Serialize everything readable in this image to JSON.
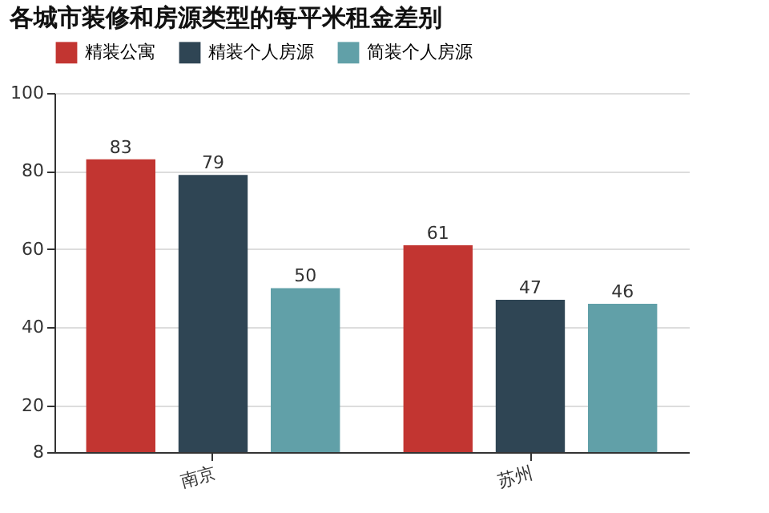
{
  "chart_data": {
    "type": "bar",
    "title": "各城市装修和房源类型的每平米租金差别",
    "categories": [
      "南京",
      "苏州"
    ],
    "series": [
      {
        "name": "精装公寓",
        "color": "#c23531",
        "values": [
          83,
          61
        ]
      },
      {
        "name": "精装个人房源",
        "color": "#2f4554",
        "values": [
          79,
          47
        ]
      },
      {
        "name": "简装个人房源",
        "color": "#61a0a8",
        "values": [
          50,
          46
        ]
      }
    ],
    "ylim": [
      8,
      100
    ],
    "yticks": [
      8,
      20,
      40,
      60,
      80,
      100
    ],
    "grid": "y",
    "legend": "top",
    "data_labels": true
  }
}
